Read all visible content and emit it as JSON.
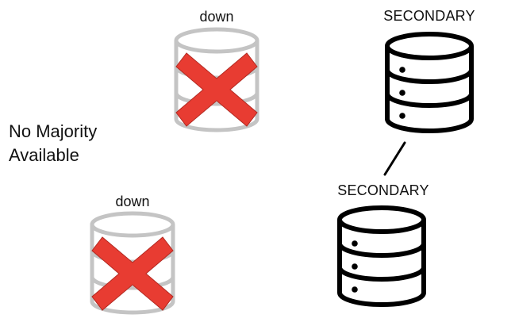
{
  "nodes": [
    {
      "id": "node-1",
      "label": "down",
      "state": "down"
    },
    {
      "id": "node-2",
      "label": "SECONDARY",
      "state": "secondary"
    },
    {
      "id": "node-3",
      "label": "down",
      "state": "down"
    },
    {
      "id": "node-4",
      "label": "SECONDARY",
      "state": "secondary"
    }
  ],
  "status": {
    "line1": "No Majority",
    "line2": "Available"
  },
  "colors": {
    "down_outline": "#c4c4c4",
    "cross": "#e83c32",
    "cross_stroke": "#b22a22",
    "secondary_outline": "#000000",
    "secondary_dot": "#000000"
  },
  "icons": {
    "down": "database-down-icon",
    "secondary": "database-icon",
    "cross": "red-x-icon",
    "link": "connection-line"
  }
}
